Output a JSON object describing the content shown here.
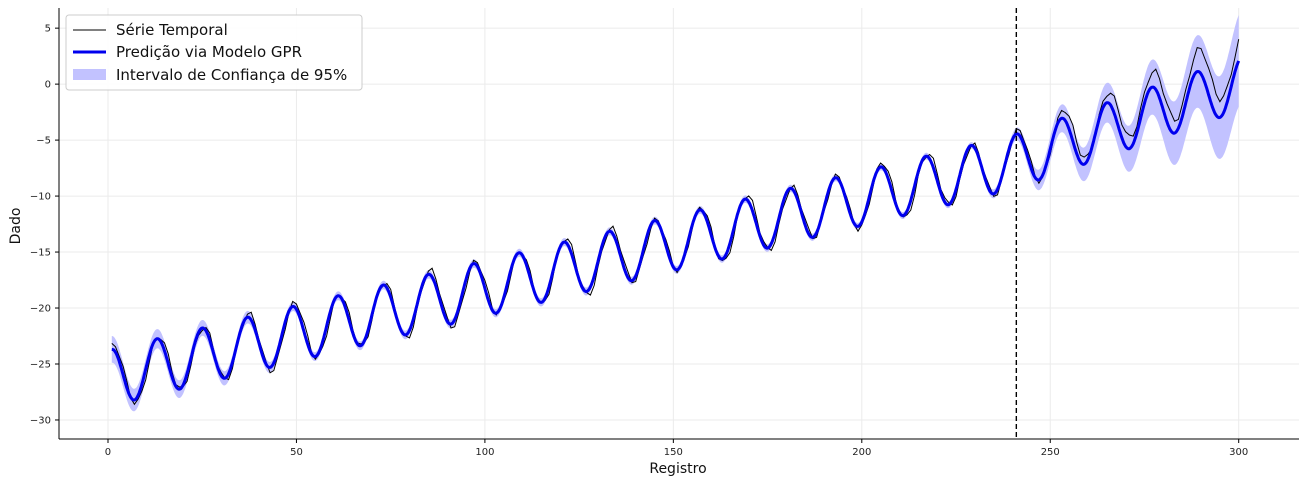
{
  "chart_data": {
    "type": "line",
    "xlabel": "Registro",
    "ylabel": "Dado",
    "xlim": [
      -13,
      316
    ],
    "ylim": [
      -31.7,
      6.8
    ],
    "xticks": [
      0,
      50,
      100,
      150,
      200,
      250,
      300
    ],
    "yticks": [
      5,
      0,
      -5,
      -10,
      -15,
      -20,
      -25,
      -30
    ],
    "x_tick_labels": [
      "0",
      "50",
      "100",
      "150",
      "200",
      "250",
      "300"
    ],
    "y_tick_labels": [
      "5",
      "0",
      "−5",
      "−10",
      "−15",
      "−20",
      "−25",
      "−30"
    ],
    "grid": true,
    "legend_position": "top-left",
    "split_line_x": 241,
    "series_model": {
      "x_start": 1,
      "x_end": 300,
      "period": 12,
      "trend": {
        "x": [
          1,
          240,
          300
        ],
        "y": [
          -26.2,
          -7.0,
          2.0
        ]
      },
      "amplitude": {
        "x": [
          1,
          240,
          300
        ],
        "y": [
          2.5,
          2.4,
          2.4
        ]
      },
      "ci_halfwidth": {
        "x": [
          1,
          10,
          50,
          230,
          240,
          250,
          270,
          290,
          300
        ],
        "y": [
          1.2,
          0.9,
          0.4,
          0.3,
          0.5,
          1.1,
          2.0,
          3.3,
          4.1
        ]
      },
      "prediction_peak_offset": -2.0,
      "series_peak_offset": 0.0,
      "series_noise_amplitude": 0.4
    },
    "series": [
      {
        "name": "Série Temporal",
        "color": "#000000"
      },
      {
        "name": "Predição via Modelo GPR",
        "color": "#0000ee"
      },
      {
        "name": "Intervalo de Confiança de 95%",
        "color": "#c2c2ff"
      }
    ]
  }
}
